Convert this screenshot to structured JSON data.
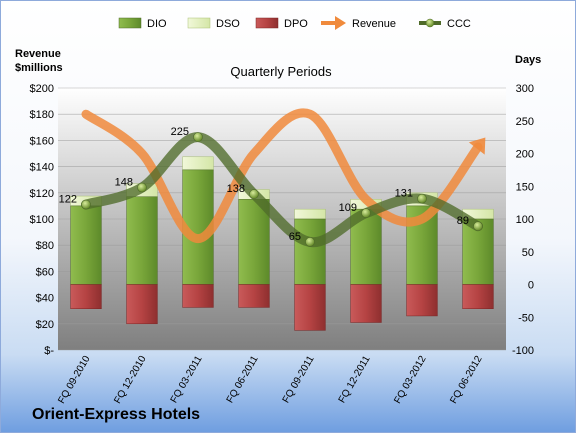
{
  "company": "Orient-Express Hotels",
  "chart_data": {
    "type": "bar",
    "title": "Quarterly Periods",
    "ylabel_left": [
      "Revenue",
      "$millions"
    ],
    "ylabel_right": "Days",
    "categories": [
      "FQ 09-2010",
      "FQ 12-2010",
      "FQ 03-2011",
      "FQ 06-2011",
      "FQ 09-2011",
      "FQ 12-2011",
      "FQ 03-2012",
      "FQ 06-2012"
    ],
    "left_axis": {
      "min": 0,
      "max": 200,
      "step": 20,
      "tick_labels": [
        "$-",
        "$20",
        "$40",
        "$60",
        "$80",
        "$100",
        "$120",
        "$140",
        "$160",
        "$180",
        "$200"
      ]
    },
    "right_axis": {
      "min": -100,
      "max": 300,
      "step": 50,
      "tick_labels": [
        "-100",
        "-50",
        "0",
        "50",
        "100",
        "150",
        "200",
        "250",
        "300"
      ]
    },
    "legend": {
      "placement": "top",
      "entries": [
        "DIO",
        "DSO",
        "DPO",
        "Revenue",
        "CCC"
      ]
    },
    "grid": true,
    "series": [
      {
        "name": "DIO",
        "axis": "right",
        "kind": "stacked-bar",
        "color": "#7aa83a",
        "values": [
          120,
          134,
          175,
          130,
          100,
          115,
          120,
          100
        ]
      },
      {
        "name": "DSO",
        "axis": "right",
        "kind": "stacked-bar",
        "color": "#e6f2c4",
        "values": [
          15,
          20,
          20,
          15,
          15,
          15,
          20,
          15
        ]
      },
      {
        "name": "DPO",
        "axis": "right",
        "kind": "negative-bar",
        "color": "#b84646",
        "values": [
          -37,
          -60,
          -35,
          -35,
          -70,
          -58,
          -48,
          -37
        ]
      },
      {
        "name": "Revenue",
        "axis": "left",
        "kind": "line",
        "color": "#f08a3c",
        "values": [
          180,
          150,
          85,
          150,
          180,
          115,
          100,
          155
        ]
      },
      {
        "name": "CCC",
        "axis": "right",
        "kind": "line",
        "color": "#4f6b2a",
        "values": [
          122,
          148,
          225,
          138,
          65,
          109,
          131,
          89
        ]
      }
    ],
    "data_labels": [
      "122",
      "148",
      "225",
      "138",
      "65",
      "109",
      "131",
      "89"
    ]
  }
}
